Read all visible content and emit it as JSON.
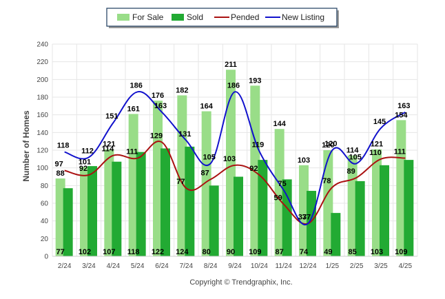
{
  "chart_data": {
    "type": "bar",
    "ylabel": "Number of Homes",
    "xlabel": "",
    "ylim": [
      0,
      240
    ],
    "yticks": [
      0,
      20,
      40,
      60,
      80,
      100,
      120,
      140,
      160,
      180,
      200,
      220,
      240
    ],
    "grid": true,
    "legend_position": "top-center",
    "categories": [
      "2/24",
      "3/24",
      "4/24",
      "5/24",
      "6/24",
      "7/24",
      "8/24",
      "9/24",
      "10/24",
      "11/24",
      "12/24",
      "1/25",
      "2/25",
      "3/25",
      "4/25"
    ],
    "series": [
      {
        "name": "For Sale",
        "kind": "bar",
        "color": "#99dd88",
        "values": [
          88,
          101,
          121,
          161,
          176,
          182,
          164,
          211,
          193,
          144,
          103,
          120,
          114,
          121,
          154
        ]
      },
      {
        "name": "Sold",
        "kind": "bar",
        "color": "#22aa33",
        "values": [
          77,
          102,
          107,
          118,
          122,
          124,
          80,
          90,
          109,
          87,
          74,
          49,
          85,
          103,
          109
        ]
      },
      {
        "name": "Pended",
        "kind": "line",
        "color": "#aa1111",
        "values": [
          97,
          92,
          114,
          111,
          129,
          77,
          87,
          103,
          92,
          59,
          37,
          78,
          89,
          110,
          111
        ]
      },
      {
        "name": "New Listing",
        "kind": "line",
        "color": "#1111cc",
        "values": [
          118,
          112,
          151,
          186,
          163,
          131,
          105,
          186,
          119,
          75,
          37,
          120,
          105,
          145,
          163
        ]
      }
    ]
  },
  "footer": "Copyright © Trendgraphix, Inc."
}
